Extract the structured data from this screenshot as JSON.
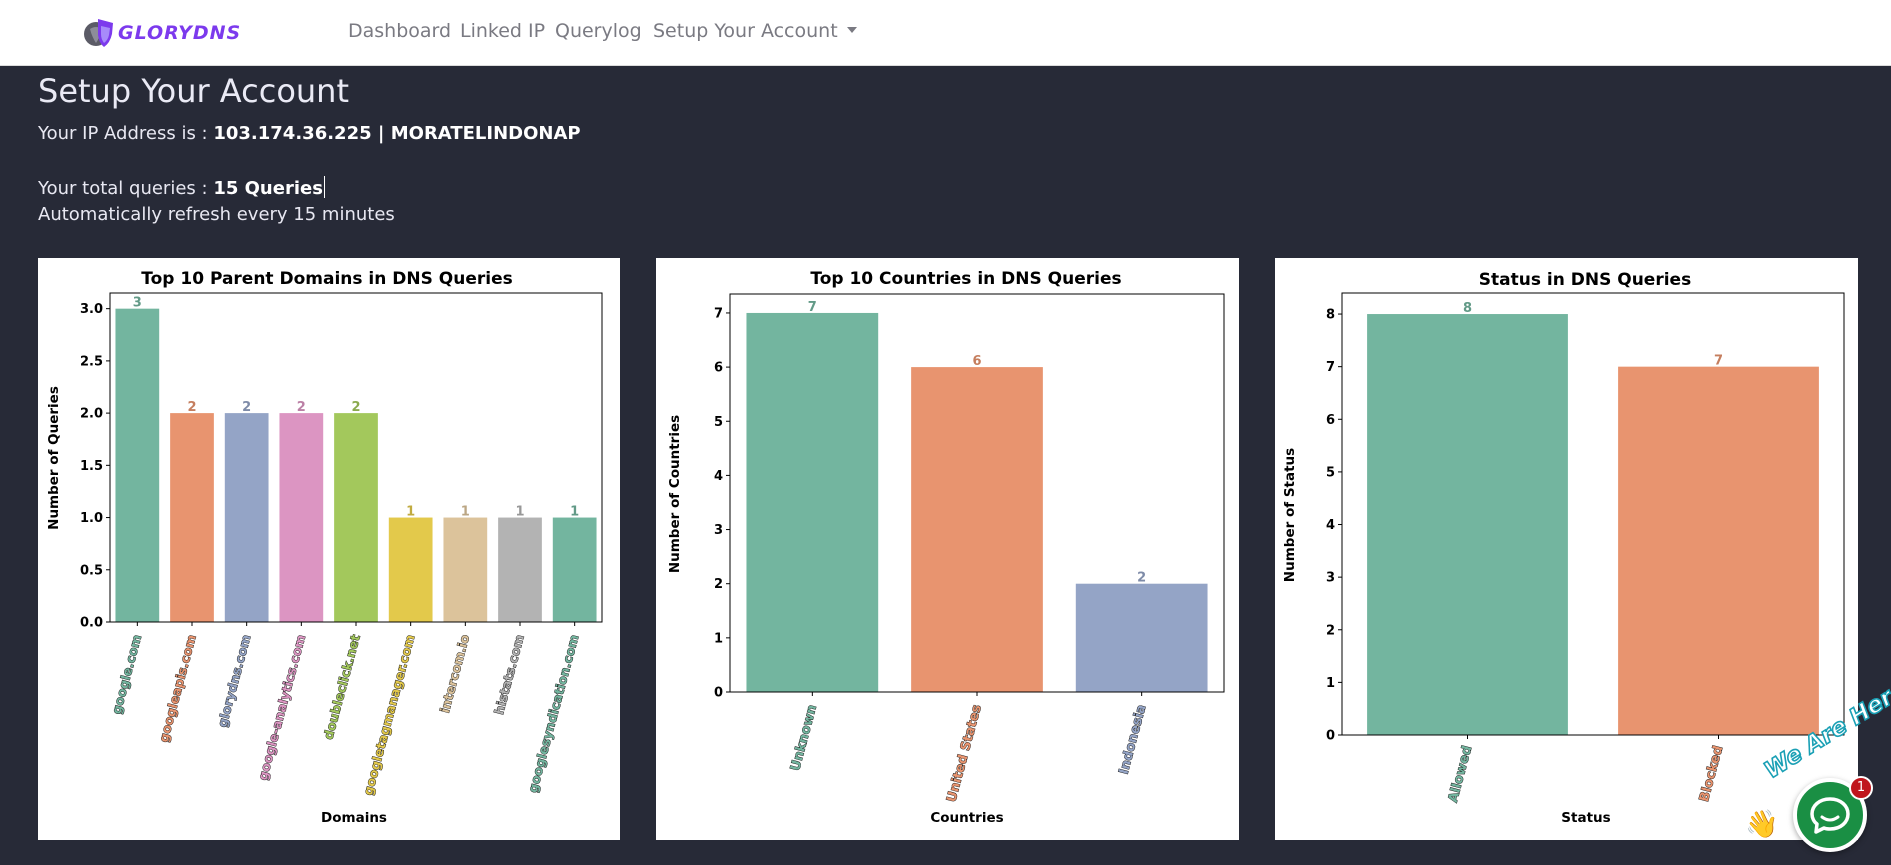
{
  "navbar": {
    "brand": "GLORYDNS",
    "links": [
      {
        "label": "Dashboard"
      },
      {
        "label": "Linked IP"
      },
      {
        "label": "Querylog"
      },
      {
        "label": "Setup Your Account"
      }
    ]
  },
  "page": {
    "title": "Setup Your Account",
    "ip_prefix": "Your IP Address is :",
    "ip_value": "103.174.36.225 | MORATELINDONAP",
    "queries_prefix": "Your total queries :",
    "queries_value": "15 Queries",
    "refresh_text": "Automatically refresh every 15 minutes"
  },
  "colors": {
    "palette": [
      "#73b59f",
      "#e8946f",
      "#94a4c6",
      "#dc95c2",
      "#a3c85c",
      "#e3c94b",
      "#dcc39b",
      "#b3b3b3",
      "#73b59f"
    ],
    "background": "#272a37",
    "brand": "#7c3aed",
    "chat_green": "#1a8f44"
  },
  "chart_data": [
    {
      "type": "bar",
      "title": "Top 10 Parent Domains in DNS Queries",
      "xlabel": "Domains",
      "ylabel": "Number of Queries",
      "categories": [
        "google.com",
        "googleapis.com",
        "glorydns.com",
        "google-analytics.com",
        "doubleclick.net",
        "googletagmanager.com",
        "intercom.io",
        "histats.com",
        "googlesyndication.com"
      ],
      "values": [
        3,
        2,
        2,
        2,
        2,
        1,
        1,
        1,
        1
      ],
      "data_labels": [
        "3",
        "2",
        "2",
        "2",
        "2",
        "1",
        "1",
        "1",
        "1"
      ],
      "ylim": [
        0,
        3.15
      ],
      "yticks": [
        "0.0",
        "0.5",
        "1.0",
        "1.5",
        "2.0",
        "2.5",
        "3.0"
      ],
      "grid": false
    },
    {
      "type": "bar",
      "title": "Top 10 Countries in DNS Queries",
      "xlabel": "Countries",
      "ylabel": "Number of Countries",
      "categories": [
        "Unknown",
        "United States",
        "Indonesia"
      ],
      "values": [
        7,
        6,
        2
      ],
      "data_labels": [
        "7",
        "6",
        "2"
      ],
      "ylim": [
        0,
        7.35
      ],
      "yticks": [
        "0",
        "1",
        "2",
        "3",
        "4",
        "5",
        "6",
        "7"
      ],
      "grid": false
    },
    {
      "type": "bar",
      "title": "Status in DNS Queries",
      "xlabel": "Status",
      "ylabel": "Number of Status",
      "categories": [
        "Allowed",
        "Blocked"
      ],
      "values": [
        8,
        7
      ],
      "data_labels": [
        "8",
        "7"
      ],
      "ylim": [
        0,
        8.4
      ],
      "yticks": [
        "0",
        "1",
        "2",
        "3",
        "4",
        "5",
        "6",
        "7",
        "8"
      ],
      "grid": false
    }
  ],
  "chat": {
    "tagline": "We Are Here!",
    "badge_count": "1"
  }
}
